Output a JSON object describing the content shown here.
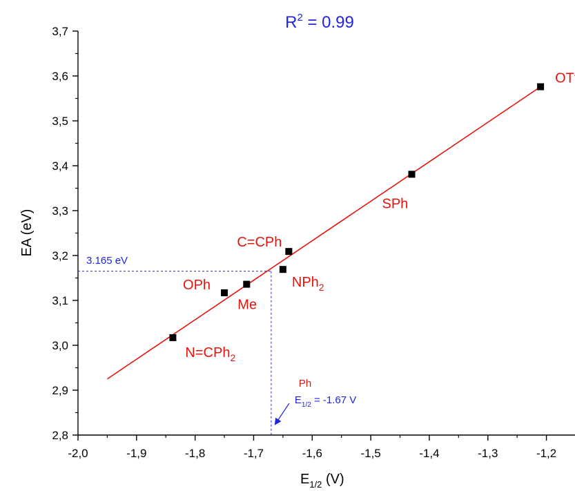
{
  "chart_data": {
    "type": "scatter",
    "title": "R² = 0.99",
    "xlabel": "E1/2 (V)",
    "ylabel": "EA (eV)",
    "xlim": [
      -2.0,
      -1.15
    ],
    "ylim": [
      2.8,
      3.7
    ],
    "x_ticks": [
      -2.0,
      -1.9,
      -1.8,
      -1.7,
      -1.6,
      -1.5,
      -1.4,
      -1.3,
      -1.2
    ],
    "x_tick_labels": [
      "-2,0",
      "-1,9",
      "-1,8",
      "-1,7",
      "-1,6",
      "-1,5",
      "-1,4",
      "-1,3",
      "-1,2"
    ],
    "y_ticks": [
      2.8,
      2.9,
      3.0,
      3.1,
      3.2,
      3.3,
      3.4,
      3.5,
      3.6,
      3.7
    ],
    "y_tick_labels": [
      "2,8",
      "2,9",
      "3,0",
      "3,1",
      "3,2",
      "3,3",
      "3,4",
      "3,5",
      "3,6",
      "3,7"
    ],
    "points": [
      {
        "label": "N=CPh2",
        "x": -1.838,
        "y": 3.017
      },
      {
        "label": "OPh",
        "x": -1.75,
        "y": 3.117
      },
      {
        "label": "Me",
        "x": -1.712,
        "y": 3.136
      },
      {
        "label": "NPh2",
        "x": -1.65,
        "y": 3.169
      },
      {
        "label": "C=CPh",
        "x": -1.64,
        "y": 3.209
      },
      {
        "label": "SPh",
        "x": -1.43,
        "y": 3.381
      },
      {
        "label": "OTf",
        "x": -1.21,
        "y": 3.576
      }
    ],
    "fit_line": {
      "x": [
        -1.95,
        -1.21
      ],
      "y": [
        2.925,
        3.576
      ],
      "color": "#e8120c"
    },
    "interpolation": {
      "x": -1.67,
      "y": 3.165,
      "y_label": "3.165 eV",
      "x_label_species": "Ph",
      "x_label_value": "= -1.67 V",
      "color": "#1f24e0"
    },
    "marker_color": "#000000",
    "label_color": "#e8120c",
    "grid": false
  }
}
